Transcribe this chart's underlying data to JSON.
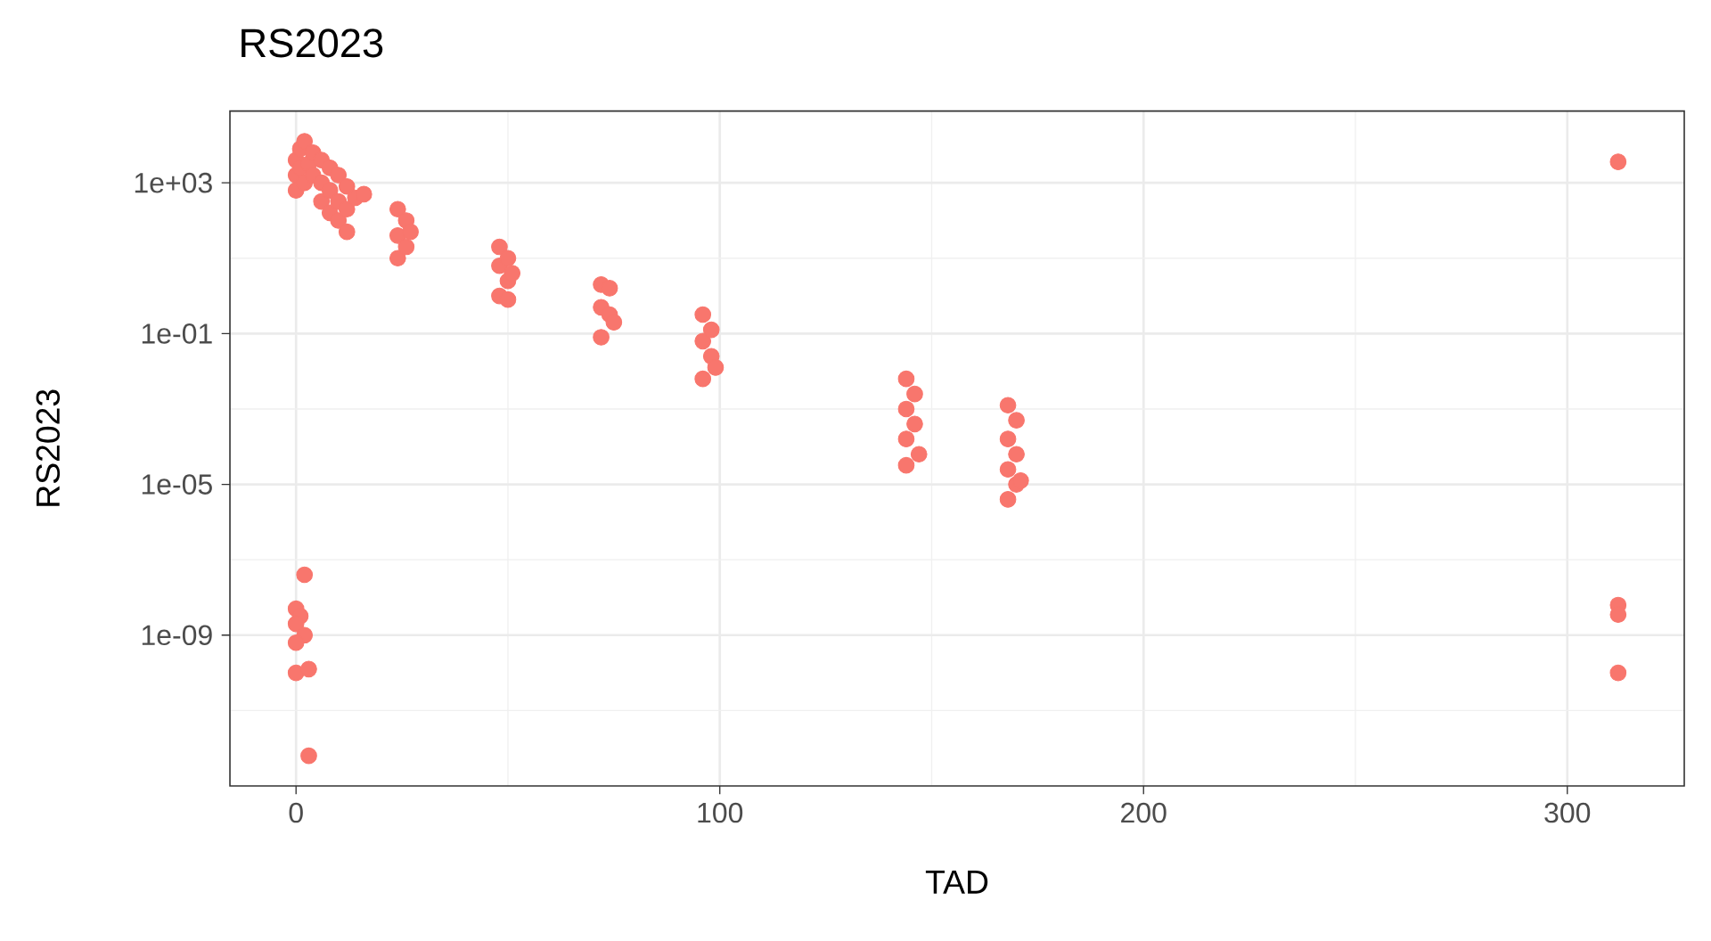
{
  "chart_data": {
    "type": "scatter",
    "title": "RS2023",
    "xlabel": "TAD",
    "ylabel": "RS2023",
    "xlim": [
      -15.6,
      327.6
    ],
    "xticks": [
      0,
      100,
      200,
      300
    ],
    "ylim": [
      1e-13,
      80000.0
    ],
    "yticks": [
      {
        "value": 1000,
        "label": "1e+03"
      },
      {
        "value": 0.1,
        "label": "1e-01"
      },
      {
        "value": 1e-05,
        "label": "1e-05"
      },
      {
        "value": 1e-09,
        "label": "1e-09"
      }
    ],
    "log": "y",
    "grid": true,
    "marker": "circle",
    "series": [
      {
        "color": "#f8766d",
        "x": [
          0,
          0,
          0,
          1,
          1,
          2,
          2,
          3,
          4,
          4,
          6,
          6,
          6,
          8,
          8,
          8,
          10,
          10,
          10,
          12,
          12,
          12,
          14,
          16,
          24,
          24,
          24,
          26,
          26,
          27,
          48,
          48,
          48,
          50,
          50,
          50,
          51,
          72,
          72,
          72,
          74,
          74,
          75,
          96,
          96,
          96,
          98,
          98,
          99,
          144,
          144,
          144,
          144,
          146,
          146,
          147,
          168,
          168,
          168,
          168,
          170,
          170,
          170,
          171,
          2,
          0,
          1,
          0,
          2,
          0,
          0,
          3,
          3,
          312,
          312,
          312,
          312
        ],
        "values": [
          1600.0,
          4000.0,
          630.0,
          8000.0,
          2500.0,
          12600.0,
          1000.0,
          3200.0,
          6300.0,
          1600.0,
          4000.0,
          1000.0,
          320.0,
          2500.0,
          630.0,
          160.0,
          1600.0,
          320.0,
          100.0,
          800.0,
          200.0,
          50,
          400.0,
          500.0,
          200.0,
          40,
          10,
          100,
          20,
          50,
          20,
          6.3,
          1,
          10,
          2.5,
          0.8,
          4,
          2,
          0.5,
          0.08,
          1.6,
          0.32,
          0.2,
          0.32,
          0.063,
          0.0063,
          0.126,
          0.025,
          0.0126,
          0.0063,
          0.001,
          0.00016,
          3.2e-05,
          0.0025,
          0.0004,
          6.3e-05,
          0.00126,
          0.00016,
          2.5e-05,
          4e-06,
          0.0005,
          6.3e-05,
          1e-05,
          1.26e-05,
          4e-08,
          5e-09,
          3.2e-09,
          2e-09,
          1e-09,
          6.3e-10,
          1e-10,
          1.26e-10,
          6.3e-13,
          3600.0,
          6.3e-09,
          3.5e-09,
          1e-10
        ]
      }
    ]
  }
}
